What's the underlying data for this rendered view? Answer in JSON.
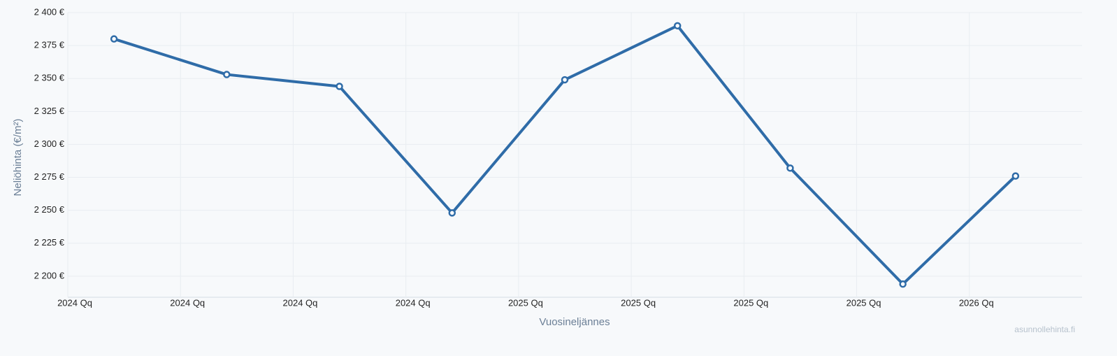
{
  "chart_data": {
    "type": "line",
    "x_label": "Vuosineljännes",
    "y_label": "Neliöhinta (€/m²)",
    "watermark": "asunnollehinta.fi",
    "categories": [
      "2024 Qq",
      "2024 Qq",
      "2024 Qq",
      "2024 Qq",
      "2025 Qq",
      "2025 Qq",
      "2025 Qq",
      "2025 Qq",
      "2026 Qq"
    ],
    "series": [
      {
        "name": "Neliöhinta",
        "color": "#2f6ca8",
        "values": [
          2380,
          2353,
          2344,
          2248,
          2349,
          2390,
          2282,
          2194,
          2276
        ]
      }
    ],
    "ylim": [
      2184,
      2400
    ],
    "yticks": [
      {
        "value": 2200,
        "label": "2 200 €"
      },
      {
        "value": 2225,
        "label": "2 225 €"
      },
      {
        "value": 2250,
        "label": "2 250 €"
      },
      {
        "value": 2275,
        "label": "2 275 €"
      },
      {
        "value": 2300,
        "label": "2 300 €"
      },
      {
        "value": 2325,
        "label": "2 325 €"
      },
      {
        "value": 2350,
        "label": "2 350 €"
      },
      {
        "value": 2375,
        "label": "2 375 €"
      },
      {
        "value": 2400,
        "label": "2 400 €"
      }
    ],
    "grid": true
  }
}
